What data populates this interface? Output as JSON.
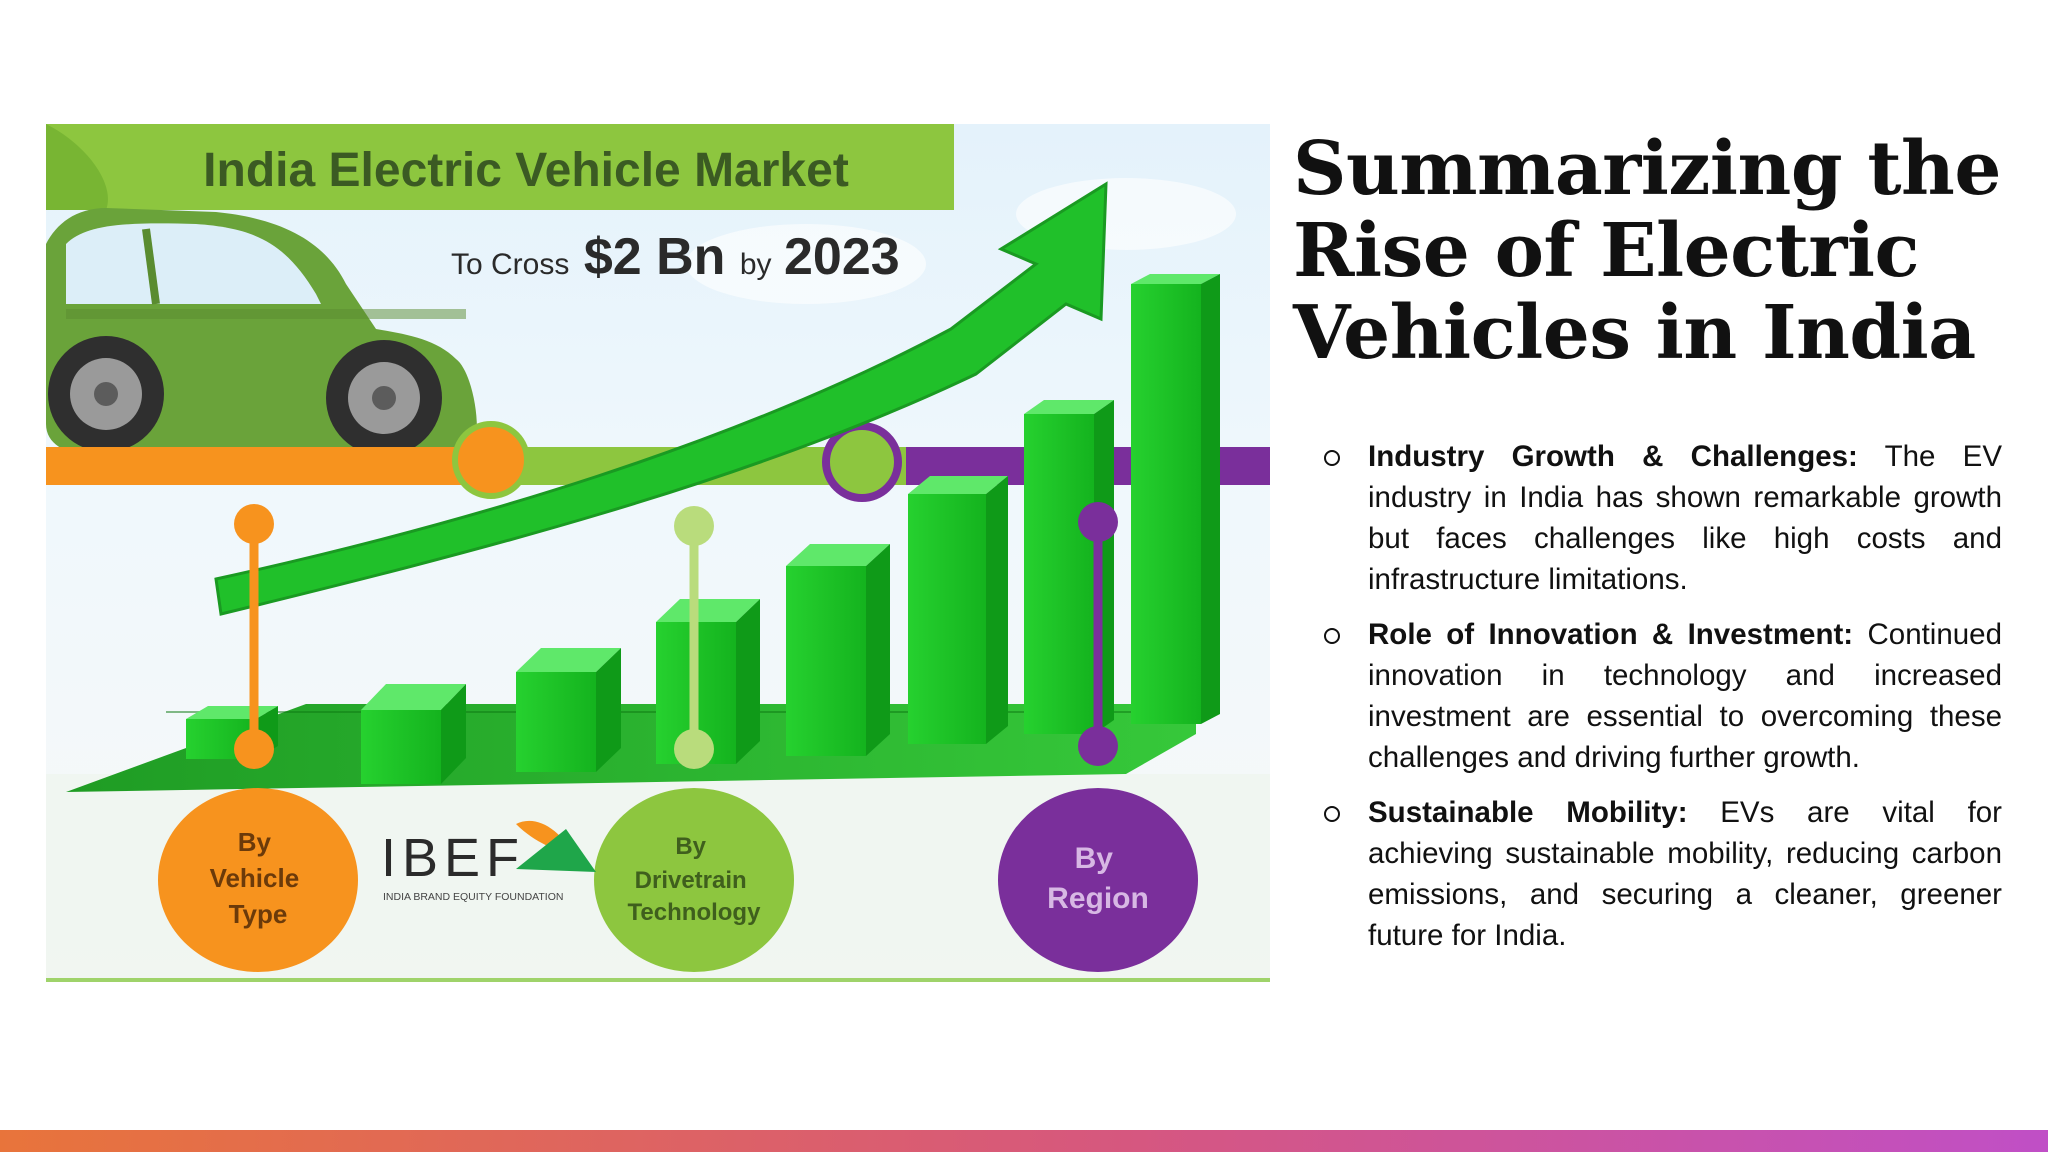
{
  "infographic": {
    "banner_title": "India Electric Vehicle Market",
    "subtitle_prefix": "To Cross",
    "subtitle_value": "$2 Bn",
    "subtitle_mid": "by",
    "subtitle_year": "2023",
    "segments": [
      {
        "line1": "By",
        "line2": "Vehicle",
        "line3": "Type",
        "color": "#f7931e"
      },
      {
        "line1": "By",
        "line2": "Drivetrain",
        "line3": "Technology",
        "color": "#8dc63f"
      },
      {
        "line1": "By",
        "line2": "Region",
        "line3": "",
        "color": "#7a2f9b"
      }
    ],
    "logo_text": "IBEF",
    "logo_subtext": "INDIA BRAND EQUITY FOUNDATION",
    "colors": {
      "orange": "#f7931e",
      "light_green": "#8dc63f",
      "purple": "#7a2f9b",
      "bar_green": "#1fc22a",
      "banner": "#8dc63f"
    }
  },
  "slide": {
    "title_lines": [
      "Summarizing the",
      "Rise of Electric",
      "Vehicles in India"
    ],
    "bullets": [
      {
        "heading": "Industry Growth & Challenges:",
        "text": " The EV industry in India has shown remarkable growth but faces challenges like high costs and infrastructure limitations."
      },
      {
        "heading": "Role of Innovation & Investment:",
        "text": " Continued innovation in technology and increased investment are essential to overcoming these challenges and driving further growth."
      },
      {
        "heading": "Sustainable Mobility:",
        "text": " EVs are vital for achieving sustainable mobility, reducing carbon emissions, and securing a cleaner, greener future for India."
      }
    ]
  },
  "footer": {
    "gradient": [
      "#e8743b",
      "#d6577f",
      "#c04fc6"
    ]
  }
}
